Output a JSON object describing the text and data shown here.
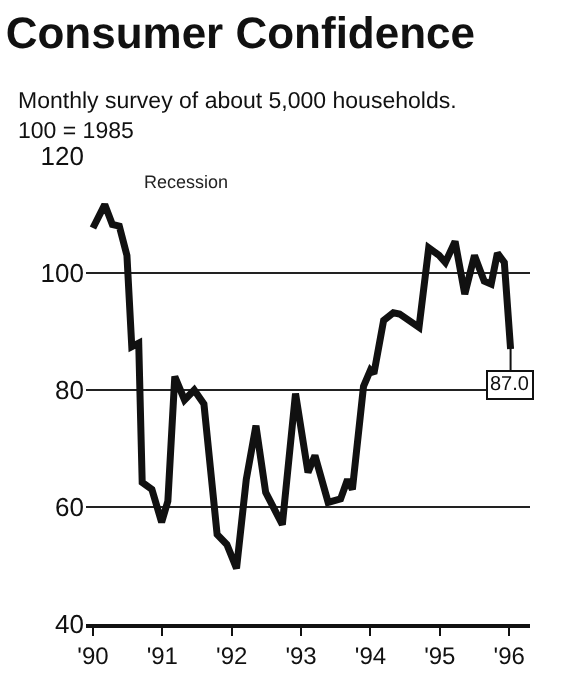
{
  "chart_data": {
    "type": "line",
    "title": "Consumer Confidence",
    "subtitle": "Monthly survey of about 5,000 households.\n100 = 1985",
    "annotations": [
      "Recession"
    ],
    "x": [
      1990.0,
      1990.17,
      1990.28,
      1990.38,
      1990.49,
      1990.56,
      1990.66,
      1990.71,
      1990.85,
      1990.99,
      1991.08,
      1991.18,
      1991.32,
      1991.46,
      1991.6,
      1991.79,
      1991.93,
      1992.07,
      1992.21,
      1992.35,
      1992.49,
      1992.73,
      1992.92,
      1993.1,
      1993.2,
      1993.39,
      1993.57,
      1993.67,
      1993.74,
      1993.9,
      1994.0,
      1994.05,
      1994.19,
      1994.33,
      1994.42,
      1994.7,
      1994.84,
      1994.99,
      1995.08,
      1995.22,
      1995.36,
      1995.5,
      1995.64,
      1995.74,
      1995.83,
      1995.93,
      1996.02
    ],
    "values": [
      107.7,
      111.7,
      108.3,
      108,
      103,
      87.4,
      88,
      64.2,
      63,
      57.4,
      61,
      82.3,
      78.3,
      80,
      77.6,
      55.3,
      53.6,
      49.5,
      64.7,
      73.9,
      62.5,
      57,
      79.4,
      65.9,
      68.8,
      60.8,
      61.4,
      64.7,
      63,
      80.6,
      83.4,
      82.8,
      91.9,
      93.2,
      93,
      90.7,
      104.3,
      103,
      101.8,
      105.4,
      96.4,
      103,
      98.6,
      98.1,
      103.4,
      101.8,
      87.0
    ],
    "value_labels": [
      null,
      null,
      null,
      null,
      null,
      null,
      null,
      null,
      null,
      null,
      null,
      null,
      null,
      null,
      null,
      null,
      null,
      null,
      null,
      null,
      null,
      null,
      null,
      null,
      null,
      null,
      null,
      null,
      null,
      null,
      null,
      null,
      null,
      null,
      null,
      null,
      null,
      null,
      null,
      null,
      null,
      null,
      null,
      null,
      null,
      null,
      "87.0"
    ],
    "color": "#111111",
    "line_style": "solid",
    "xlim": [
      1989.9,
      1996.3
    ],
    "xticks": [
      {
        "value": 1990,
        "label": "'90"
      },
      {
        "value": 1991,
        "label": "'91"
      },
      {
        "value": 1992,
        "label": "'92"
      },
      {
        "value": 1993,
        "label": "'93"
      },
      {
        "value": 1994,
        "label": "'94"
      },
      {
        "value": 1995,
        "label": "'95"
      },
      {
        "value": 1996,
        "label": "'96"
      }
    ],
    "ylim": [
      40,
      120
    ],
    "yticks": [
      40,
      60,
      80,
      100,
      120
    ],
    "grid": "y",
    "legend": false
  }
}
